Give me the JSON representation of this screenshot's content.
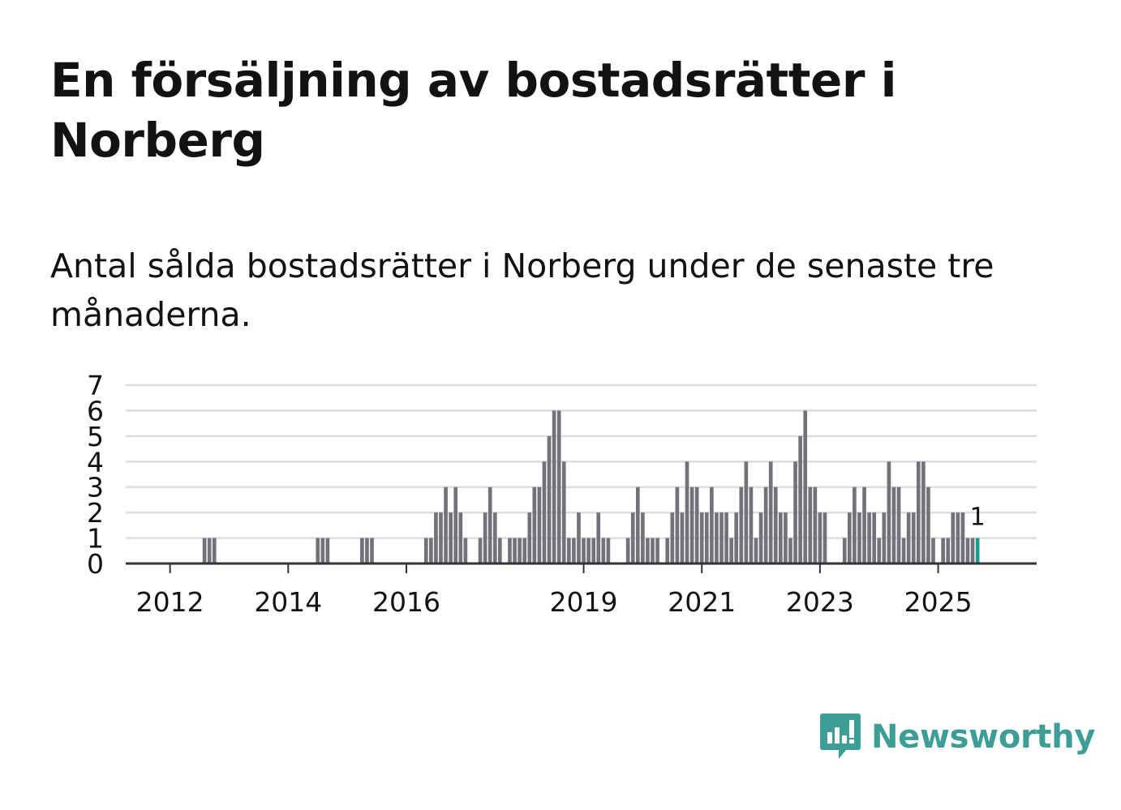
{
  "title": "En försäljning av bostadsrätter i Norberg",
  "subtitle": "Antal sålda bostadsrätter i Norberg under de senaste tre månaderna.",
  "brand": {
    "name": "Newsworthy",
    "logo_icon": "newsworthy-logo-icon"
  },
  "colors": {
    "bar": "#737278",
    "highlight": "#1a9c8f",
    "grid": "#dddddd",
    "axis": "#333333",
    "text": "#121212",
    "brand": "#3e9e96"
  },
  "chart_data": {
    "type": "bar",
    "title": "",
    "xlabel": "",
    "ylabel": "",
    "ylim": [
      0,
      7
    ],
    "yticks": [
      "0",
      "1",
      "2",
      "3",
      "4",
      "5",
      "6",
      "7"
    ],
    "x_start": "2011-04",
    "x_end": "2026-09",
    "xticks": [
      {
        "label": "2012",
        "month": "2012-01"
      },
      {
        "label": "2014",
        "month": "2014-01"
      },
      {
        "label": "2016",
        "month": "2016-01"
      },
      {
        "label": "2019",
        "month": "2019-01"
      },
      {
        "label": "2021",
        "month": "2021-01"
      },
      {
        "label": "2023",
        "month": "2023-01"
      },
      {
        "label": "2025",
        "month": "2025-01"
      }
    ],
    "grid": true,
    "series": [
      {
        "name": "Antal sålda bostadsrätter",
        "start": "2012-08",
        "values": [
          1,
          1,
          1,
          0,
          0,
          0,
          0,
          0,
          0,
          0,
          0,
          0,
          0,
          0,
          0,
          0,
          0,
          0,
          0,
          0,
          0,
          0,
          0,
          1,
          1,
          1,
          0,
          0,
          0,
          0,
          0,
          0,
          1,
          1,
          1,
          0,
          0,
          0,
          0,
          0,
          0,
          0,
          0,
          0,
          0,
          1,
          1,
          2,
          2,
          3,
          2,
          3,
          2,
          1,
          0,
          0,
          1,
          2,
          3,
          2,
          1,
          0,
          1,
          1,
          1,
          1,
          2,
          3,
          3,
          4,
          5,
          6,
          6,
          4,
          1,
          1,
          2,
          1,
          1,
          1,
          2,
          1,
          1,
          0,
          0,
          0,
          1,
          2,
          3,
          2,
          1,
          1,
          1,
          0,
          1,
          2,
          3,
          2,
          4,
          3,
          3,
          2,
          2,
          3,
          2,
          2,
          2,
          1,
          2,
          3,
          4,
          3,
          1,
          2,
          3,
          4,
          3,
          2,
          2,
          1,
          4,
          5,
          6,
          3,
          3,
          2,
          2,
          0,
          0,
          0,
          1,
          2,
          3,
          2,
          3,
          2,
          2,
          1,
          2,
          4,
          3,
          3,
          1,
          2,
          2,
          4,
          4,
          3,
          1,
          0,
          1,
          1,
          2,
          2,
          2,
          1,
          1
        ]
      }
    ],
    "highlight": {
      "month": "2025-09",
      "value": 1,
      "label": "1"
    }
  }
}
